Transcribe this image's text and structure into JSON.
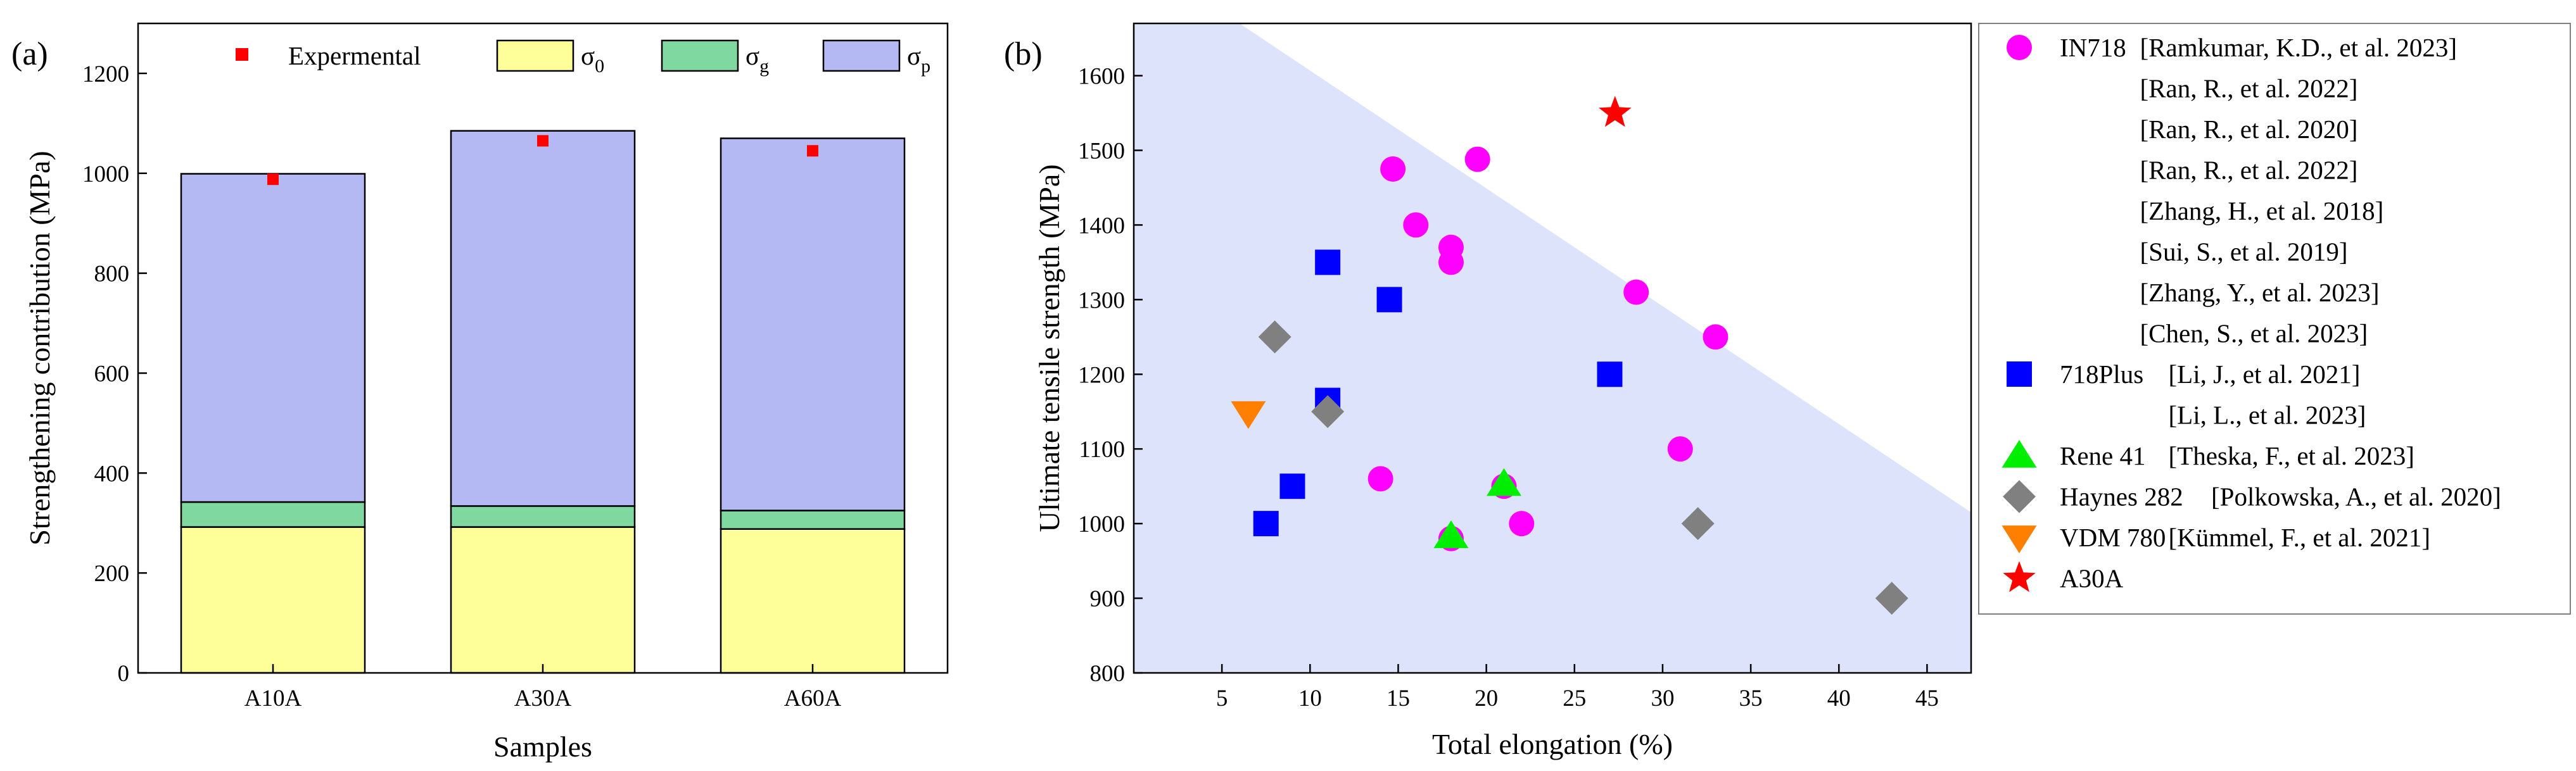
{
  "chart_data": [
    {
      "type": "bar",
      "panel_label": "(a)",
      "stacked": true,
      "categories": [
        "A10A",
        "A30A",
        "A60A"
      ],
      "xlabel": "Samples",
      "ylabel": "Strengthening contribution (MPa)",
      "ylim": [
        0,
        1300
      ],
      "yticks": [
        0,
        200,
        400,
        600,
        800,
        1000,
        1200
      ],
      "series": [
        {
          "name": "σ0",
          "base": "σ",
          "sub": "0",
          "color": "#ffff99",
          "values": [
            292,
            292,
            288
          ]
        },
        {
          "name": "σg",
          "base": "σ",
          "sub": "g",
          "color": "#7fd8a0",
          "values": [
            50,
            42,
            37
          ]
        },
        {
          "name": "σp",
          "base": "σ",
          "sub": "p",
          "color": "#b4b9f4",
          "values": [
            657,
            751,
            745
          ]
        }
      ],
      "experimental": {
        "name": "Expermental",
        "color": "#ff0000",
        "values": [
          988,
          1065,
          1045
        ]
      }
    },
    {
      "type": "scatter",
      "panel_label": "(b)",
      "xlabel": "Total elongation (%)",
      "ylabel": "Ultimate tensile strength (MPa)",
      "xlim": [
        0,
        47.5
      ],
      "ylim": [
        800,
        1670
      ],
      "xticks": [
        5,
        10,
        15,
        20,
        25,
        30,
        35,
        40,
        45
      ],
      "yticks": [
        800,
        900,
        1000,
        1100,
        1200,
        1300,
        1400,
        1500,
        1600
      ],
      "region_color": "#dde3fb",
      "region_line": [
        [
          6.0,
          1670
        ],
        [
          47.5,
          1015
        ]
      ],
      "series": [
        {
          "name": "IN718",
          "marker": "circle",
          "color": "#ff00ff",
          "refs": [
            "[Ramkumar, K.D., et al. 2023]",
            "[Ran, R., et al. 2022]",
            "[Ran, R., et al. 2020]",
            "[Ran, R., et al. 2022]",
            "[Zhang, H., et al. 2018]",
            "[Sui, S., et al. 2019]",
            "[Zhang, Y., et al. 2023]",
            "[Chen, S., et al. 2023]"
          ],
          "points": [
            [
              14.7,
              1475
            ],
            [
              19.5,
              1488
            ],
            [
              16.0,
              1400
            ],
            [
              18.0,
              1370
            ],
            [
              18.0,
              1350
            ],
            [
              28.5,
              1310
            ],
            [
              33.0,
              1250
            ],
            [
              31.0,
              1100
            ],
            [
              14.0,
              1060
            ],
            [
              21.0,
              1050
            ],
            [
              22.0,
              1000
            ],
            [
              18.0,
              980
            ]
          ]
        },
        {
          "name": "718Plus",
          "marker": "square",
          "color": "#0000ff",
          "refs": [
            "[Li, J., et al. 2021]",
            "[Li, L., et al. 2023]"
          ],
          "points": [
            [
              11.0,
              1350
            ],
            [
              14.5,
              1300
            ],
            [
              27.0,
              1200
            ],
            [
              11.0,
              1165
            ],
            [
              9.0,
              1050
            ],
            [
              7.5,
              1000
            ]
          ]
        },
        {
          "name": "Rene 41",
          "marker": "triangle-up",
          "color": "#00ee00",
          "refs": [
            "[Theska, F., et al. 2023]"
          ],
          "points": [
            [
              21.0,
              1053
            ],
            [
              18.0,
              983
            ]
          ]
        },
        {
          "name": "Haynes 282",
          "marker": "diamond",
          "color": "#808080",
          "refs": [
            "[Polkowska, A., et al. 2020]"
          ],
          "points": [
            [
              8.0,
              1250
            ],
            [
              11.0,
              1150
            ],
            [
              32.0,
              1000
            ],
            [
              43.0,
              900
            ]
          ]
        },
        {
          "name": "VDM 780",
          "marker": "triangle-down",
          "color": "#ff7f00",
          "refs": [
            "[Kümmel, F., et al. 2021]"
          ],
          "points": [
            [
              6.5,
              1148
            ]
          ]
        },
        {
          "name": "A30A",
          "marker": "star",
          "color": "#ff0000",
          "refs": [],
          "points": [
            [
              27.3,
              1550
            ]
          ]
        }
      ]
    }
  ]
}
